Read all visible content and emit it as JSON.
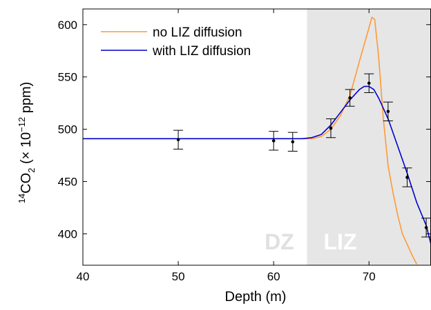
{
  "chart_data": {
    "type": "line",
    "xlabel": "Depth (m)",
    "ylabel": {
      "sup1": "14",
      "main": "CO",
      "sub": "2",
      "mid": " (× 10",
      "sup2": "−12",
      "tail": " ppm)"
    },
    "xlim": [
      40,
      76.5
    ],
    "ylim": [
      370,
      615
    ],
    "xticks": [
      40,
      50,
      60,
      70
    ],
    "yticks": [
      400,
      450,
      500,
      550,
      600
    ],
    "grid": false,
    "legend_position": "top-left",
    "regions": [
      {
        "label": "DZ",
        "x_start": 40,
        "x_end": 63.5,
        "fill": "#ffffff",
        "text_color": "#e0e0e0"
      },
      {
        "label": "LIZ",
        "x_start": 63.5,
        "x_end": 76.5,
        "fill": "#e6e6e6",
        "text_color": "#ffffff"
      }
    ],
    "series": [
      {
        "name": "no LIZ diffusion",
        "color": "#ff9933",
        "points": [
          [
            40,
            491
          ],
          [
            50,
            491
          ],
          [
            60,
            491
          ],
          [
            62,
            491
          ],
          [
            63,
            491
          ],
          [
            64,
            491
          ],
          [
            65,
            493
          ],
          [
            66,
            500
          ],
          [
            67,
            513
          ],
          [
            68,
            532
          ],
          [
            69,
            565
          ],
          [
            69.5,
            581
          ],
          [
            70,
            597
          ],
          [
            70.3,
            607
          ],
          [
            70.6,
            605
          ],
          [
            71,
            570
          ],
          [
            71.5,
            510
          ],
          [
            72,
            465
          ],
          [
            72.5,
            440
          ],
          [
            73,
            418
          ],
          [
            73.5,
            400
          ],
          [
            74,
            390
          ],
          [
            74.5,
            380
          ],
          [
            75,
            371
          ]
        ]
      },
      {
        "name": "with LIZ diffusion",
        "color": "#0000cc",
        "points": [
          [
            40,
            491
          ],
          [
            50,
            491
          ],
          [
            60,
            491
          ],
          [
            62,
            491
          ],
          [
            63,
            491
          ],
          [
            64,
            492
          ],
          [
            65,
            495
          ],
          [
            66,
            504
          ],
          [
            67,
            516
          ],
          [
            68,
            528
          ],
          [
            69,
            538
          ],
          [
            69.5,
            541
          ],
          [
            70,
            541
          ],
          [
            70.5,
            538
          ],
          [
            71,
            530
          ],
          [
            72,
            510
          ],
          [
            73,
            484
          ],
          [
            74,
            458
          ],
          [
            75,
            430
          ],
          [
            76,
            408
          ],
          [
            76.5,
            390
          ]
        ]
      }
    ],
    "observations": [
      {
        "x": 50,
        "y": 490,
        "err": 9
      },
      {
        "x": 60,
        "y": 489,
        "err": 9
      },
      {
        "x": 62,
        "y": 488,
        "err": 9
      },
      {
        "x": 66,
        "y": 501,
        "err": 9
      },
      {
        "x": 68,
        "y": 530,
        "err": 8
      },
      {
        "x": 70,
        "y": 544,
        "err": 9
      },
      {
        "x": 72,
        "y": 517,
        "err": 9
      },
      {
        "x": 74,
        "y": 454,
        "err": 9
      },
      {
        "x": 76,
        "y": 406,
        "err": 9
      }
    ]
  }
}
